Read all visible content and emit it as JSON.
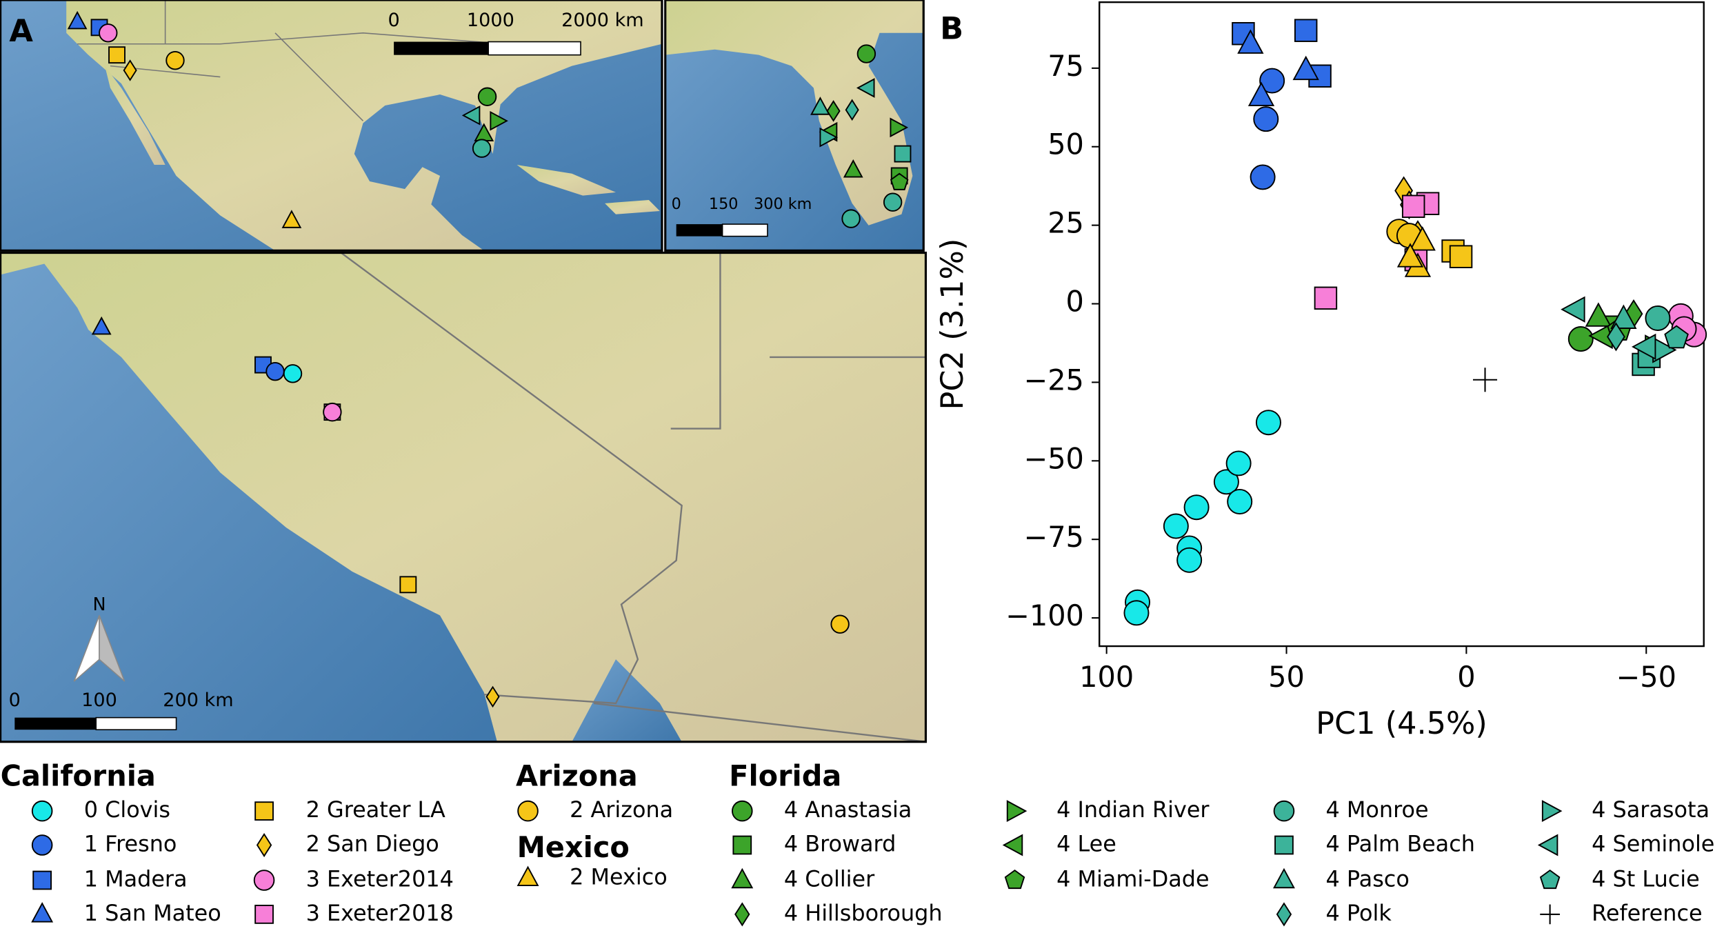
{
  "panel_labels": [
    "A",
    "B"
  ],
  "map_north": "N",
  "map_scale_bars": [
    [
      "0",
      "1000",
      "2000 km"
    ],
    [
      "0",
      "150",
      "300 km"
    ],
    [
      "0",
      "100",
      "200 km"
    ]
  ],
  "chart_data": {
    "type": "scatter",
    "xlabel": "PC1 (4.5%)",
    "ylabel": "PC2 (3.1%)",
    "xlim": [
      102,
      -66
    ],
    "ylim": [
      -109,
      96
    ],
    "xticks": [
      100,
      50,
      0,
      {
        "value": -50,
        "label": "−50"
      }
    ],
    "yticks": [
      75,
      50,
      25,
      0,
      {
        "value": -25,
        "label": "−25"
      },
      {
        "value": -50,
        "label": "−50"
      },
      {
        "value": -75,
        "label": "−75"
      },
      {
        "value": -100,
        "label": "−100"
      }
    ],
    "legend_titles": [
      "California",
      "Arizona",
      "Mexico",
      "Florida"
    ],
    "series": [
      {
        "name": "0 Clovis",
        "color": "#18e8e8",
        "marker": "o",
        "x": [
          91.4,
          91.7,
          80.7,
          77,
          77,
          75,
          66.7,
          63.3,
          63,
          55
        ],
        "y": [
          -95,
          -98.4,
          -70.8,
          -77.8,
          -81.6,
          -64.8,
          -56.7,
          -50.8,
          -63,
          -37.8
        ]
      },
      {
        "name": "1 Fresno",
        "color": "#2e6be6",
        "marker": "o",
        "x": [
          54,
          55.7,
          56.6
        ],
        "y": [
          71,
          58.8,
          40.3
        ]
      },
      {
        "name": "1 Madera",
        "color": "#2e6be6",
        "marker": "s",
        "x": [
          62,
          44.6,
          40.7
        ],
        "y": [
          86,
          87,
          72.5
        ]
      },
      {
        "name": "1 San Mateo",
        "color": "#2e6be6",
        "marker": "^",
        "x": [
          60,
          57,
          44.6
        ],
        "y": [
          82.7,
          66,
          74.3
        ]
      },
      {
        "name": "2 Greater LA",
        "color": "#f5c518",
        "marker": "s",
        "x": [
          3.7,
          1.5
        ],
        "y": [
          16.8,
          15
        ]
      },
      {
        "name": "2 San Diego",
        "color": "#f5c518",
        "marker": "d",
        "x": [
          17.4,
          15.9,
          13.5
        ],
        "y": [
          36,
          31.5,
          22
        ]
      },
      {
        "name": "3 Exeter2014",
        "color": "#f77fd8",
        "marker": "o",
        "x": [
          -59.6,
          -63.3,
          -60.5
        ],
        "y": [
          -3.9,
          -9.8,
          -8
        ]
      },
      {
        "name": "3 Exeter2018",
        "color": "#f77fd8",
        "marker": "s",
        "x": [
          14,
          10.7,
          39.1,
          14.7
        ],
        "y": [
          14,
          31.9,
          1.8,
          31
        ]
      },
      {
        "name": "2 Arizona",
        "color": "#f5c518",
        "marker": "o",
        "x": [
          18.7,
          15.9
        ],
        "y": [
          23,
          21.7
        ]
      },
      {
        "name": "2 Mexico",
        "color": "#f5c518",
        "marker": "^",
        "x": [
          13.5,
          12.2,
          15.6
        ],
        "y": [
          11.6,
          20,
          14.7
        ]
      },
      {
        "name": "4 Anastasia",
        "color": "#3ca42a",
        "marker": "o",
        "x": [
          -31.8
        ],
        "y": [
          -11.2
        ]
      },
      {
        "name": "4 Broward",
        "color": "#3ca42a",
        "marker": "s",
        "x": [
          -41.6
        ],
        "y": [
          -7.4
        ]
      },
      {
        "name": "4 Collier",
        "color": "#3ca42a",
        "marker": "^",
        "x": [
          -36.7
        ],
        "y": [
          -4.2
        ]
      },
      {
        "name": "4 Hillsborough",
        "color": "#3ca42a",
        "marker": "d",
        "x": [
          -46.5
        ],
        "y": [
          -3.2
        ]
      },
      {
        "name": "4 Indian River",
        "color": "#3ca42a",
        "marker": ">",
        "x": [
          -52.3
        ],
        "y": [
          -14
        ]
      },
      {
        "name": "4 Lee",
        "color": "#3ca42a",
        "marker": "<",
        "x": [
          -38
        ],
        "y": [
          -10.2
        ]
      },
      {
        "name": "4 Miami-Dade",
        "color": "#3ca42a",
        "marker": "p",
        "x": [
          -42.5
        ],
        "y": [
          -8.4
        ]
      },
      {
        "name": "4 Monroe",
        "color": "#3cb39a",
        "marker": "o",
        "x": [
          -53.2
        ],
        "y": [
          -4.6
        ]
      },
      {
        "name": "4 Palm Beach",
        "color": "#3cb39a",
        "marker": "s",
        "x": [
          -49.2,
          -50.8
        ],
        "y": [
          -19.3,
          -16.8
        ]
      },
      {
        "name": "4 Pasco",
        "color": "#3cb39a",
        "marker": "^",
        "x": [
          -43.7
        ],
        "y": [
          -4.9
        ]
      },
      {
        "name": "4 Polk",
        "color": "#3cb39a",
        "marker": "d",
        "x": [
          -41.6
        ],
        "y": [
          -10.5
        ]
      },
      {
        "name": "4 Sarasota",
        "color": "#3cb39a",
        "marker": ">",
        "x": [
          -54.4
        ],
        "y": [
          -14.7
        ]
      },
      {
        "name": "4 Seminole",
        "color": "#3cb39a",
        "marker": "<",
        "x": [
          -30.3,
          -50
        ],
        "y": [
          -1.8,
          -13.7
        ]
      },
      {
        "name": "4 St Lucie",
        "color": "#3cb39a",
        "marker": "p",
        "x": [
          -58.4
        ],
        "y": [
          -10.9
        ]
      },
      {
        "name": "Reference",
        "color": "#000000",
        "marker": "+",
        "x": [
          -5.2
        ],
        "y": [
          -24.2
        ]
      }
    ]
  }
}
